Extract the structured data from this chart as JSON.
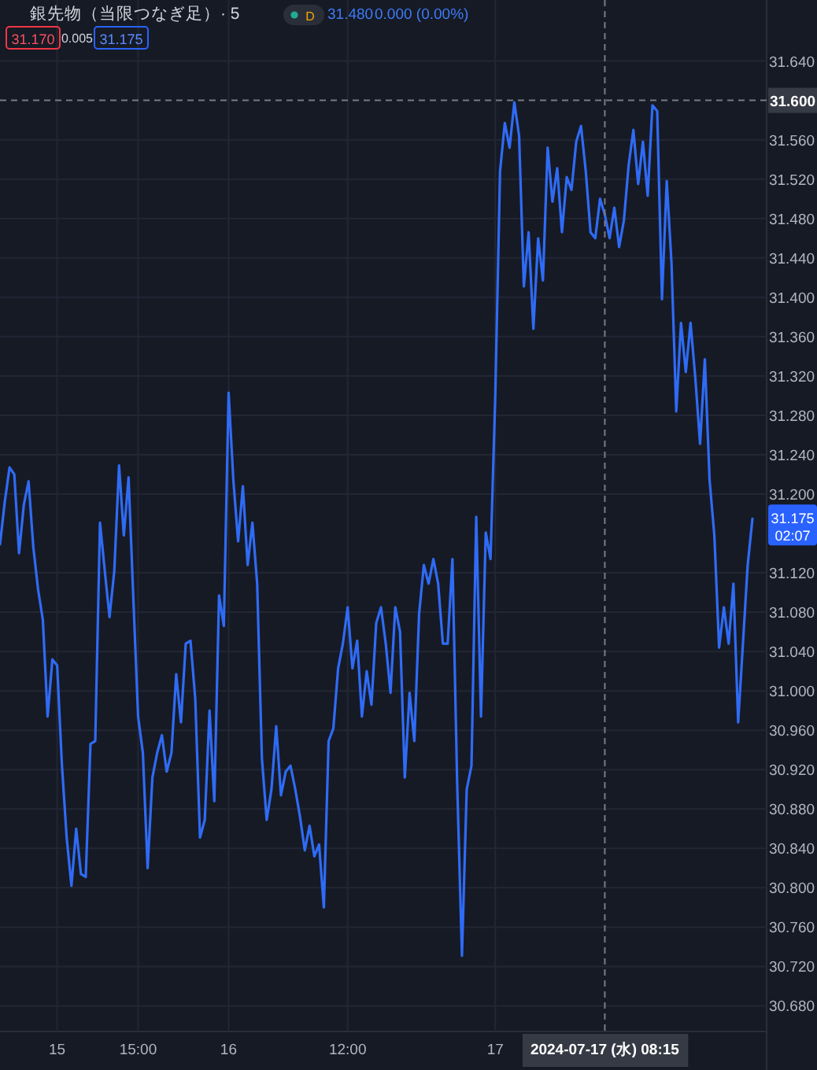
{
  "chart_data": {
    "type": "line",
    "title": "銀先物（当限つなぎ足）· 5",
    "categories": [
      null,
      null,
      null,
      null,
      null,
      null,
      null,
      null,
      null,
      null,
      null,
      null,
      "15",
      null,
      null,
      null,
      null,
      null,
      null,
      null,
      null,
      null,
      null,
      null,
      null,
      null,
      null,
      null,
      null,
      "15:00",
      null,
      null,
      null,
      null,
      null,
      null,
      null,
      null,
      null,
      null,
      null,
      null,
      null,
      null,
      null,
      null,
      null,
      null,
      "16",
      null,
      null,
      null,
      null,
      null,
      null,
      null,
      null,
      null,
      null,
      null,
      null,
      null,
      null,
      null,
      null,
      null,
      null,
      null,
      null,
      null,
      null,
      null,
      null,
      "12:00",
      null,
      null,
      null,
      null,
      null,
      null,
      null,
      null,
      null,
      null,
      null,
      null,
      null,
      null,
      null,
      null,
      null,
      null,
      null,
      null,
      null,
      null,
      null,
      null,
      null,
      null,
      null,
      null,
      null,
      null,
      "17",
      null,
      null,
      null,
      null,
      null,
      null,
      null,
      null,
      null,
      null,
      null,
      null,
      null,
      null,
      null,
      null,
      null,
      null,
      null,
      null,
      null,
      null,
      "2024-07-17 (水)  08:15",
      null,
      null,
      null,
      null,
      null,
      null,
      null,
      null,
      null,
      null,
      null,
      null,
      null,
      null,
      null,
      null,
      null,
      null,
      null,
      null,
      null,
      null,
      null,
      null,
      null,
      null,
      null,
      null,
      null,
      null,
      null
    ],
    "series": [
      {
        "color": "#2f6bf5",
        "values": [
          31.149,
          31.192,
          31.227,
          31.22,
          31.14,
          31.189,
          31.213,
          31.146,
          31.103,
          31.072,
          30.974,
          31.032,
          31.026,
          30.925,
          30.851,
          30.802,
          30.86,
          30.814,
          30.811,
          30.946,
          30.949,
          31.171,
          31.122,
          31.075,
          31.122,
          31.229,
          31.158,
          31.217,
          31.094,
          30.974,
          30.937,
          30.82,
          30.912,
          30.937,
          30.955,
          30.918,
          30.937,
          31.017,
          30.968,
          31.048,
          31.051,
          30.992,
          30.851,
          30.869,
          30.98,
          30.888,
          31.097,
          31.066,
          31.303,
          31.214,
          31.152,
          31.208,
          31.128,
          31.171,
          31.109,
          30.931,
          30.869,
          30.9,
          30.964,
          30.894,
          30.918,
          30.924,
          30.9,
          30.872,
          30.838,
          30.863,
          30.832,
          30.844,
          30.78,
          30.949,
          30.962,
          31.023,
          31.048,
          31.085,
          31.023,
          31.051,
          30.974,
          31.02,
          30.986,
          31.069,
          31.085,
          31.048,
          30.998,
          31.085,
          31.06,
          30.912,
          30.998,
          30.949,
          31.078,
          31.128,
          31.109,
          31.134,
          31.109,
          31.048,
          31.048,
          31.134,
          30.906,
          30.731,
          30.9,
          30.924,
          31.177,
          30.974,
          31.161,
          31.134,
          31.3,
          31.528,
          31.577,
          31.552,
          31.598,
          31.564,
          31.411,
          31.466,
          31.368,
          31.46,
          31.417,
          31.552,
          31.497,
          31.531,
          31.466,
          31.522,
          31.509,
          31.558,
          31.574,
          31.528,
          31.466,
          31.46,
          31.5,
          31.484,
          31.46,
          31.491,
          31.451,
          31.478,
          31.534,
          31.57,
          31.515,
          31.558,
          31.503,
          31.595,
          31.589,
          31.398,
          31.518,
          31.435,
          31.284,
          31.374,
          31.324,
          31.374,
          31.318,
          31.251,
          31.337,
          31.214,
          31.158,
          31.044,
          31.085,
          31.048,
          31.109,
          30.968,
          31.048,
          31.128,
          31.175
        ]
      }
    ],
    "ylim": [
      30.654,
      31.702
    ],
    "yticks": [
      {
        "value": 30.68,
        "label": "30.680"
      },
      {
        "value": 30.72,
        "label": "30.720"
      },
      {
        "value": 30.76,
        "label": "30.760"
      },
      {
        "value": 30.8,
        "label": "30.800"
      },
      {
        "value": 30.84,
        "label": "30.840"
      },
      {
        "value": 30.88,
        "label": "30.880"
      },
      {
        "value": 30.92,
        "label": "30.920"
      },
      {
        "value": 30.96,
        "label": "30.960"
      },
      {
        "value": 31.0,
        "label": "31.000"
      },
      {
        "value": 31.04,
        "label": "31.040"
      },
      {
        "value": 31.08,
        "label": "31.080"
      },
      {
        "value": 31.12,
        "label": "31.120"
      },
      {
        "value": 31.2,
        "label": "31.200"
      },
      {
        "value": 31.24,
        "label": "31.240"
      },
      {
        "value": 31.28,
        "label": "31.280"
      },
      {
        "value": 31.32,
        "label": "31.320"
      },
      {
        "value": 31.36,
        "label": "31.360"
      },
      {
        "value": 31.4,
        "label": "31.400"
      },
      {
        "value": 31.44,
        "label": "31.440"
      },
      {
        "value": 31.48,
        "label": "31.480"
      },
      {
        "value": 31.52,
        "label": "31.520"
      },
      {
        "value": 31.56,
        "label": "31.560"
      },
      {
        "value": 31.64,
        "label": "31.640"
      }
    ],
    "grid": true,
    "line_style": "solid",
    "ref_lines": [
      {
        "axis": "y",
        "value": 31.6,
        "label": "31.600",
        "line_style": "dashed",
        "color": "#787b86"
      },
      {
        "axis": "x",
        "value": "2024-07-17 (水)  08:15",
        "line_style": "dashed",
        "color": "#787b86"
      }
    ],
    "annotations": [
      "D",
      "31.480",
      "0.000 (0.00%)",
      "31.170",
      "0.005",
      "31.175",
      "31.175",
      "02:07"
    ]
  }
}
